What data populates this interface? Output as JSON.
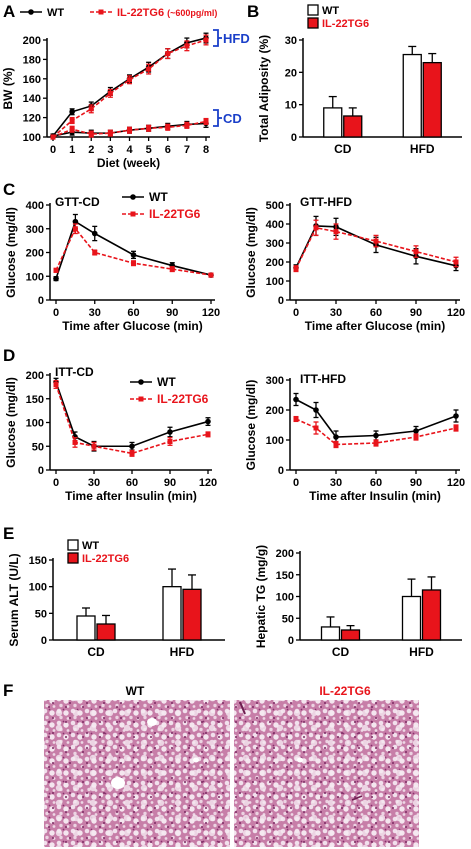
{
  "colors": {
    "wt": "#000000",
    "tg": "#e8141b",
    "bracket": "#1a3fc9"
  },
  "panels": {
    "A": {
      "letter": "A",
      "hfd_label": "HFD",
      "cd_label": "CD"
    },
    "B": {
      "letter": "B"
    },
    "C": {
      "letter": "C",
      "left_title": "GTT-CD",
      "right_title": "GTT-HFD"
    },
    "D": {
      "letter": "D",
      "left_title": "ITT-CD",
      "right_title": "ITT-HFD"
    },
    "E": {
      "letter": "E"
    },
    "F": {
      "letter": "F",
      "left_label": "WT",
      "right_label": "IL-22TG6"
    }
  },
  "chart_data": [
    {
      "id": "A",
      "type": "line",
      "xlabel": "Diet  (week)",
      "ylabel": "BW (%)",
      "xlim": [
        0,
        8
      ],
      "ylim": [
        100,
        200
      ],
      "x_ticks": [
        0,
        1,
        2,
        3,
        4,
        5,
        6,
        7,
        8
      ],
      "y_ticks": [
        100,
        120,
        140,
        160,
        180,
        200
      ],
      "legend": [
        "WT",
        "IL-22TG6 (~600pg/ml)"
      ],
      "series": [
        {
          "name": "WT",
          "group": "HFD",
          "color": "#000000",
          "dashed": false,
          "x": [
            0,
            1,
            2,
            3,
            4,
            5,
            6,
            7,
            8
          ],
          "y": [
            101,
            126,
            132,
            147,
            160,
            172,
            186,
            197,
            202
          ],
          "err": [
            2,
            3,
            4,
            4,
            4,
            5,
            5,
            5,
            5
          ]
        },
        {
          "name": "IL-22TG6",
          "group": "HFD",
          "color": "#e8141b",
          "dashed": true,
          "x": [
            0,
            1,
            2,
            3,
            4,
            5,
            6,
            7,
            8
          ],
          "y": [
            100,
            117,
            129,
            145,
            159,
            170,
            186,
            194,
            200
          ],
          "err": [
            2,
            3,
            4,
            4,
            4,
            5,
            5,
            5,
            5
          ]
        },
        {
          "name": "WT",
          "group": "CD",
          "color": "#000000",
          "dashed": false,
          "x": [
            0,
            1,
            2,
            3,
            4,
            5,
            6,
            7,
            8
          ],
          "y": [
            101,
            105,
            104,
            104,
            107,
            109,
            111,
            113,
            114
          ],
          "err": [
            2,
            3,
            3,
            3,
            3,
            3,
            3,
            3,
            4
          ]
        },
        {
          "name": "IL-22TG6",
          "group": "CD",
          "color": "#e8141b",
          "dashed": true,
          "x": [
            0,
            1,
            2,
            3,
            4,
            5,
            6,
            7,
            8
          ],
          "y": [
            100,
            108,
            103,
            104,
            107,
            109,
            110,
            112,
            116
          ],
          "err": [
            2,
            3,
            3,
            3,
            3,
            3,
            3,
            3,
            3
          ]
        }
      ]
    },
    {
      "id": "B",
      "type": "bar",
      "categories": [
        "CD",
        "HFD"
      ],
      "ylabel": "Total Adiposity (%)",
      "ylim": [
        0,
        30
      ],
      "y_ticks": [
        0,
        10,
        20,
        30
      ],
      "legend": [
        "WT",
        "IL-22TG6"
      ],
      "series": [
        {
          "name": "WT",
          "color": "#ffffff",
          "values": [
            9,
            25.5
          ],
          "err": [
            3.5,
            2.5
          ]
        },
        {
          "name": "IL-22TG6",
          "color": "#e8141b",
          "values": [
            6.5,
            23
          ],
          "err": [
            2.5,
            2.8
          ]
        }
      ]
    },
    {
      "id": "C-left",
      "type": "line",
      "title": "GTT-CD",
      "xlabel": "Time after Glucose (min)",
      "ylabel": "Glucose (mg/dl)",
      "xlim": [
        0,
        120
      ],
      "ylim": [
        0,
        400
      ],
      "x_ticks": [
        0,
        30,
        60,
        90,
        120
      ],
      "y_ticks": [
        0,
        100,
        200,
        300,
        400
      ],
      "legend": [
        "WT",
        "IL-22TG6"
      ],
      "series": [
        {
          "name": "WT",
          "color": "#000000",
          "dashed": false,
          "x": [
            0,
            15,
            30,
            60,
            90,
            120
          ],
          "y": [
            90,
            330,
            280,
            190,
            145,
            105
          ],
          "err": [
            8,
            30,
            30,
            15,
            12,
            8
          ]
        },
        {
          "name": "IL-22TG6",
          "color": "#e8141b",
          "dashed": true,
          "x": [
            0,
            15,
            30,
            60,
            90,
            120
          ],
          "y": [
            125,
            300,
            200,
            155,
            130,
            105
          ],
          "err": [
            8,
            20,
            10,
            10,
            10,
            8
          ]
        }
      ]
    },
    {
      "id": "C-right",
      "type": "line",
      "title": "GTT-HFD",
      "xlabel": "Time after Glucose (min)",
      "ylabel": "Glucose (mg/dl)",
      "xlim": [
        0,
        120
      ],
      "ylim": [
        0,
        500
      ],
      "x_ticks": [
        0,
        30,
        60,
        90,
        120
      ],
      "y_ticks": [
        0,
        100,
        200,
        300,
        400,
        500
      ],
      "series": [
        {
          "name": "WT",
          "color": "#000000",
          "dashed": false,
          "x": [
            0,
            15,
            30,
            60,
            90,
            120
          ],
          "y": [
            170,
            390,
            385,
            290,
            230,
            180
          ],
          "err": [
            15,
            50,
            45,
            40,
            40,
            25
          ]
        },
        {
          "name": "IL-22TG6",
          "color": "#e8141b",
          "dashed": true,
          "x": [
            0,
            15,
            30,
            60,
            90,
            120
          ],
          "y": [
            165,
            380,
            360,
            310,
            255,
            200
          ],
          "err": [
            15,
            40,
            40,
            30,
            30,
            25
          ]
        }
      ]
    },
    {
      "id": "D-left",
      "type": "line",
      "title": "ITT-CD",
      "xlabel": "Time after Insulin (min)",
      "ylabel": "Glucose (mg/dl)",
      "xlim": [
        0,
        120
      ],
      "ylim": [
        0,
        200
      ],
      "x_ticks": [
        0,
        30,
        60,
        90,
        120
      ],
      "y_ticks": [
        0,
        50,
        100,
        150,
        200
      ],
      "legend": [
        "WT",
        "IL-22TG6"
      ],
      "series": [
        {
          "name": "WT",
          "color": "#000000",
          "dashed": false,
          "x": [
            0,
            15,
            30,
            60,
            90,
            120
          ],
          "y": [
            185,
            70,
            50,
            50,
            80,
            102
          ],
          "err": [
            8,
            10,
            10,
            8,
            10,
            8
          ]
        },
        {
          "name": "IL-22TG6",
          "color": "#e8141b",
          "dashed": true,
          "x": [
            0,
            15,
            30,
            60,
            90,
            120
          ],
          "y": [
            180,
            58,
            50,
            35,
            60,
            75
          ],
          "err": [
            8,
            10,
            8,
            6,
            8,
            5
          ]
        }
      ]
    },
    {
      "id": "D-right",
      "type": "line",
      "title": "ITT-HFD",
      "xlabel": "Time after Insulin (min)",
      "ylabel": "Glucose (mg/dl)",
      "xlim": [
        0,
        120
      ],
      "ylim": [
        0,
        300
      ],
      "x_ticks": [
        0,
        30,
        60,
        90,
        120
      ],
      "y_ticks": [
        0,
        100,
        200,
        300
      ],
      "series": [
        {
          "name": "WT",
          "color": "#000000",
          "dashed": false,
          "x": [
            0,
            15,
            30,
            60,
            90,
            120
          ],
          "y": [
            235,
            200,
            110,
            115,
            130,
            180
          ],
          "err": [
            20,
            25,
            20,
            15,
            15,
            20
          ]
        },
        {
          "name": "IL-22TG6",
          "color": "#e8141b",
          "dashed": true,
          "x": [
            0,
            15,
            30,
            60,
            90,
            120
          ],
          "y": [
            170,
            140,
            85,
            90,
            110,
            140
          ],
          "err": [
            8,
            20,
            10,
            10,
            10,
            10
          ]
        }
      ]
    },
    {
      "id": "E-left",
      "type": "bar",
      "categories": [
        "CD",
        "HFD"
      ],
      "ylabel": "Serum ALT (U/L)",
      "ylim": [
        0,
        150
      ],
      "y_ticks": [
        0,
        50,
        100,
        150
      ],
      "legend": [
        "WT",
        "IL-22TG6"
      ],
      "series": [
        {
          "name": "WT",
          "color": "#ffffff",
          "values": [
            45,
            100
          ],
          "err": [
            15,
            33
          ]
        },
        {
          "name": "IL-22TG6",
          "color": "#e8141b",
          "values": [
            30,
            95
          ],
          "err": [
            16,
            27
          ]
        }
      ]
    },
    {
      "id": "E-right",
      "type": "bar",
      "categories": [
        "CD",
        "HFD"
      ],
      "ylabel": "Hepatic TG (mg/g)",
      "ylim": [
        0,
        200
      ],
      "y_ticks": [
        0,
        50,
        100,
        150,
        200
      ],
      "series": [
        {
          "name": "WT",
          "color": "#ffffff",
          "values": [
            30,
            100
          ],
          "err": [
            23,
            40
          ]
        },
        {
          "name": "IL-22TG6",
          "color": "#e8141b",
          "values": [
            23,
            115
          ],
          "err": [
            10,
            30
          ]
        }
      ]
    }
  ]
}
